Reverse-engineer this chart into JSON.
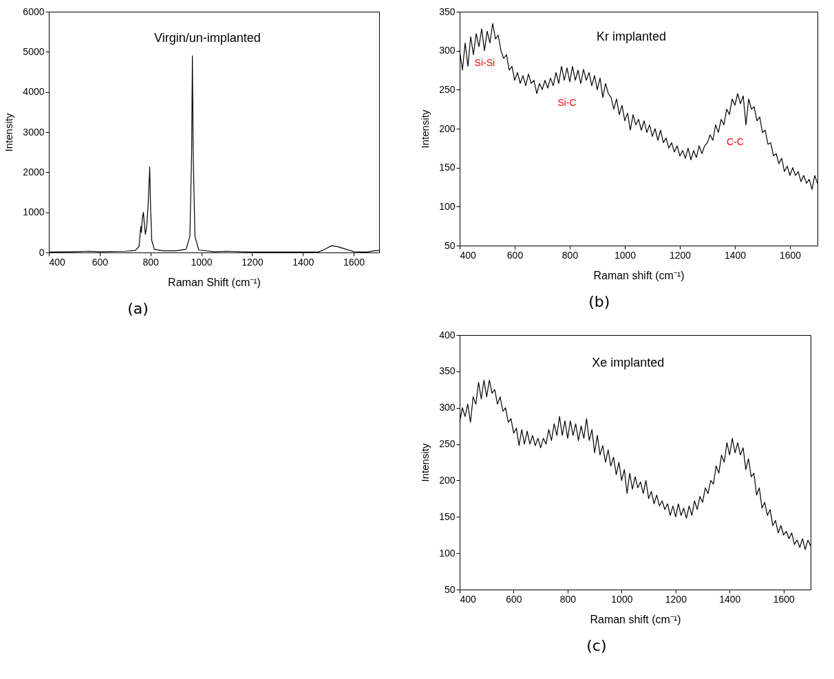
{
  "chart_data": [
    {
      "type": "line",
      "title": "Virgin/un-implanted",
      "xlabel": "Raman Shift (cm⁻¹)",
      "ylabel": "Intensity",
      "annotations": [
        "(a)"
      ],
      "xlim": [
        400,
        1700
      ],
      "xticks": [
        400,
        600,
        800,
        1000,
        1200,
        1400,
        1600
      ],
      "ylim": [
        0,
        6000
      ],
      "yticks": [
        0,
        1000,
        2000,
        3000,
        4000,
        5000,
        6000
      ],
      "x": [
        400,
        500,
        560,
        600,
        700,
        740,
        755,
        762,
        764,
        768,
        772,
        776,
        780,
        785,
        790,
        795,
        797,
        800,
        805,
        815,
        850,
        900,
        940,
        955,
        962,
        965,
        968,
        975,
        990,
        1050,
        1100,
        1200,
        1400,
        1460,
        1480,
        1500,
        1515,
        1540,
        1570,
        1600,
        1650,
        1680,
        1700
      ],
      "series": [
        {
          "color": "#000000",
          "values": [
            10,
            20,
            30,
            20,
            30,
            50,
            150,
            650,
            500,
            850,
            1000,
            700,
            450,
            650,
            1100,
            1800,
            2130,
            1200,
            300,
            80,
            40,
            40,
            80,
            400,
            2500,
            4900,
            2500,
            400,
            60,
            20,
            30,
            10,
            10,
            10,
            60,
            130,
            170,
            140,
            80,
            20,
            10,
            40,
            50
          ]
        }
      ]
    },
    {
      "type": "line",
      "title": "Kr implanted",
      "xlabel": "Raman shift (cm⁻¹)",
      "ylabel": "Intensity",
      "annotations": [
        "(b)",
        "Si-Si",
        "Si-C",
        "C-C"
      ],
      "xlim": [
        400,
        1700
      ],
      "xticks": [
        400,
        600,
        800,
        1000,
        1200,
        1400,
        1600
      ],
      "ylim": [
        50,
        350
      ],
      "yticks": [
        50,
        100,
        150,
        200,
        250,
        300,
        350
      ],
      "x": [
        400,
        410,
        420,
        430,
        440,
        450,
        460,
        470,
        480,
        490,
        500,
        510,
        520,
        530,
        540,
        550,
        560,
        570,
        580,
        590,
        600,
        610,
        620,
        630,
        640,
        650,
        660,
        670,
        680,
        690,
        700,
        710,
        720,
        730,
        740,
        750,
        760,
        770,
        780,
        790,
        800,
        810,
        820,
        830,
        840,
        850,
        860,
        870,
        880,
        890,
        900,
        910,
        920,
        930,
        940,
        950,
        960,
        970,
        980,
        990,
        1000,
        1010,
        1020,
        1030,
        1040,
        1050,
        1060,
        1070,
        1080,
        1090,
        1100,
        1110,
        1120,
        1130,
        1140,
        1150,
        1160,
        1170,
        1180,
        1190,
        1200,
        1210,
        1220,
        1230,
        1240,
        1250,
        1260,
        1270,
        1280,
        1290,
        1300,
        1310,
        1320,
        1330,
        1340,
        1350,
        1360,
        1370,
        1380,
        1390,
        1400,
        1410,
        1420,
        1430,
        1440,
        1450,
        1460,
        1470,
        1480,
        1490,
        1500,
        1510,
        1520,
        1530,
        1540,
        1550,
        1560,
        1570,
        1580,
        1590,
        1600,
        1610,
        1620,
        1630,
        1640,
        1650,
        1660,
        1670,
        1680,
        1690,
        1700
      ],
      "series": [
        {
          "color": "#000000",
          "values": [
            300,
            275,
            310,
            280,
            318,
            295,
            322,
            305,
            328,
            300,
            325,
            310,
            335,
            315,
            320,
            300,
            290,
            295,
            275,
            280,
            262,
            272,
            258,
            268,
            255,
            270,
            258,
            262,
            245,
            258,
            250,
            262,
            252,
            265,
            255,
            272,
            258,
            280,
            262,
            278,
            260,
            280,
            262,
            275,
            258,
            276,
            262,
            272,
            255,
            268,
            250,
            265,
            240,
            258,
            245,
            240,
            225,
            238,
            218,
            230,
            210,
            220,
            198,
            218,
            205,
            212,
            198,
            210,
            195,
            205,
            190,
            200,
            185,
            198,
            182,
            188,
            175,
            182,
            170,
            178,
            165,
            172,
            162,
            175,
            160,
            172,
            163,
            178,
            168,
            178,
            182,
            192,
            185,
            205,
            195,
            212,
            205,
            225,
            218,
            238,
            230,
            245,
            232,
            242,
            205,
            238,
            225,
            228,
            210,
            215,
            195,
            198,
            180,
            182,
            165,
            168,
            155,
            162,
            145,
            152,
            140,
            150,
            140,
            145,
            132,
            140,
            130,
            135,
            122,
            140,
            130
          ]
        }
      ]
    },
    {
      "type": "line",
      "title": "Xe implanted",
      "xlabel": "Raman shift (cm⁻¹)",
      "ylabel": "Intensity",
      "annotations": [
        "(c)"
      ],
      "xlim": [
        400,
        1700
      ],
      "xticks": [
        400,
        600,
        800,
        1000,
        1200,
        1400,
        1600
      ],
      "ylim": [
        50,
        400
      ],
      "yticks": [
        50,
        100,
        150,
        200,
        250,
        300,
        350,
        400
      ],
      "x": [
        400,
        410,
        420,
        430,
        440,
        450,
        460,
        470,
        480,
        490,
        500,
        510,
        520,
        530,
        540,
        550,
        560,
        570,
        580,
        590,
        600,
        610,
        620,
        630,
        640,
        650,
        660,
        670,
        680,
        690,
        700,
        710,
        720,
        730,
        740,
        750,
        760,
        770,
        780,
        790,
        800,
        810,
        820,
        830,
        840,
        850,
        860,
        870,
        880,
        890,
        900,
        910,
        920,
        930,
        940,
        950,
        960,
        970,
        980,
        990,
        1000,
        1010,
        1020,
        1030,
        1040,
        1050,
        1060,
        1070,
        1080,
        1090,
        1100,
        1110,
        1120,
        1130,
        1140,
        1150,
        1160,
        1170,
        1180,
        1190,
        1200,
        1210,
        1220,
        1230,
        1240,
        1250,
        1260,
        1270,
        1280,
        1290,
        1300,
        1310,
        1320,
        1330,
        1340,
        1350,
        1360,
        1370,
        1380,
        1390,
        1400,
        1410,
        1420,
        1430,
        1440,
        1450,
        1460,
        1470,
        1480,
        1490,
        1500,
        1510,
        1520,
        1530,
        1540,
        1550,
        1560,
        1570,
        1580,
        1590,
        1600,
        1610,
        1620,
        1630,
        1640,
        1650,
        1660,
        1670,
        1680,
        1690,
        1700
      ],
      "series": [
        {
          "color": "#000000",
          "values": [
            280,
            300,
            288,
            305,
            280,
            315,
            305,
            335,
            312,
            338,
            315,
            338,
            320,
            325,
            305,
            315,
            295,
            300,
            280,
            285,
            265,
            272,
            248,
            270,
            250,
            268,
            250,
            262,
            248,
            258,
            245,
            258,
            250,
            270,
            255,
            278,
            262,
            288,
            262,
            282,
            258,
            282,
            262,
            278,
            255,
            275,
            258,
            285,
            255,
            270,
            238,
            262,
            235,
            248,
            225,
            242,
            220,
            232,
            208,
            225,
            200,
            215,
            182,
            210,
            188,
            205,
            190,
            198,
            182,
            200,
            175,
            185,
            168,
            180,
            165,
            172,
            160,
            168,
            152,
            165,
            150,
            168,
            152,
            162,
            148,
            165,
            152,
            172,
            160,
            178,
            170,
            190,
            182,
            200,
            195,
            220,
            210,
            235,
            225,
            252,
            235,
            258,
            238,
            252,
            235,
            245,
            215,
            230,
            205,
            210,
            180,
            190,
            162,
            170,
            152,
            160,
            138,
            145,
            128,
            138,
            125,
            130,
            120,
            128,
            112,
            118,
            108,
            120,
            105,
            118,
            110
          ]
        }
      ]
    }
  ]
}
